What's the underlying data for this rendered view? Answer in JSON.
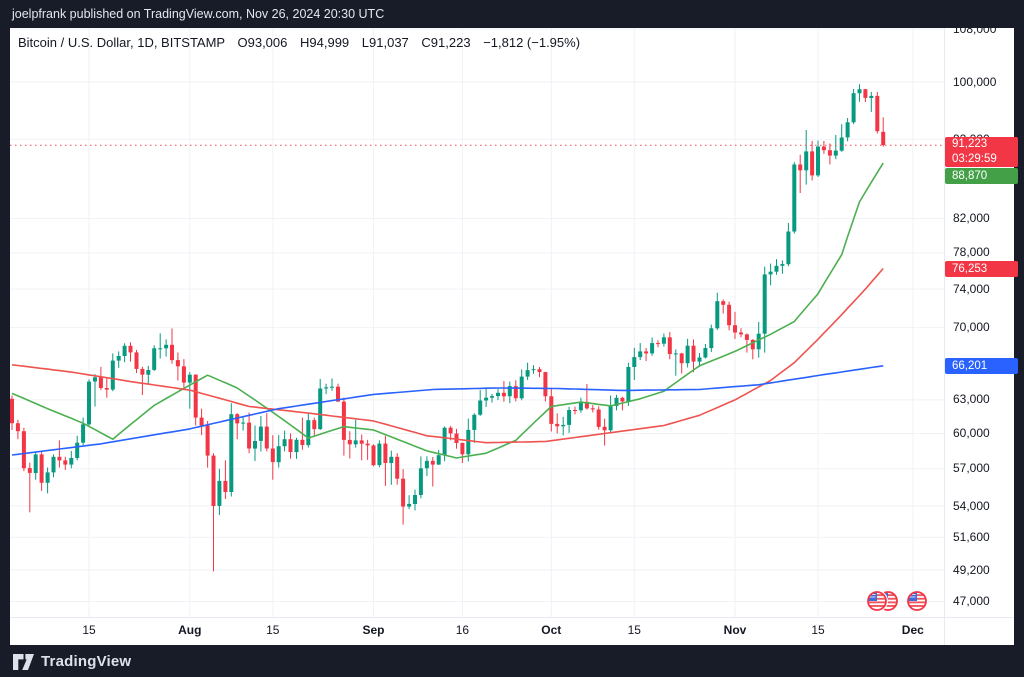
{
  "header": {
    "publish_text": "joelpfrank published on TradingView.com, Nov 26, 2024 20:30 UTC"
  },
  "title": {
    "instrument": "Bitcoin / U.S. Dollar, 1D, BITSTAMP",
    "o_label": "O",
    "o_value": "93,006",
    "h_label": "H",
    "h_value": "94,999",
    "l_label": "L",
    "l_value": "91,037",
    "c_label": "C",
    "c_value": "91,223",
    "change": "−1,812 (−1.95%)"
  },
  "footer": {
    "brand": "TradingView"
  },
  "price_axis": {
    "ticks": [
      {
        "label": "108,000",
        "value": 108000
      },
      {
        "label": "100,000",
        "value": 100000
      },
      {
        "label": "92,000",
        "value": 92000
      },
      {
        "label": "82,000",
        "value": 82000
      },
      {
        "label": "78,000",
        "value": 78000
      },
      {
        "label": "74,000",
        "value": 74000
      },
      {
        "label": "70,000",
        "value": 70000
      },
      {
        "label": "63,000",
        "value": 63000
      },
      {
        "label": "60,000",
        "value": 60000
      },
      {
        "label": "57,000",
        "value": 57000
      },
      {
        "label": "54,000",
        "value": 54000
      },
      {
        "label": "51,600",
        "value": 51600
      },
      {
        "label": "49,200",
        "value": 49200
      },
      {
        "label": "47,000",
        "value": 47000
      }
    ],
    "badges": [
      {
        "name": "last-price-badge",
        "lines": [
          "91,223",
          "03:29:59"
        ],
        "value": 91223,
        "color": "#f23645"
      },
      {
        "name": "ma-fast-badge",
        "lines": [
          "88,870"
        ],
        "value": 88870,
        "color": "#43a047"
      },
      {
        "name": "ma-mid-badge",
        "lines": [
          "76,253"
        ],
        "value": 76253,
        "color": "#f23645"
      },
      {
        "name": "ma-slow-badge",
        "lines": [
          "66,201"
        ],
        "value": 66201,
        "color": "#2962ff"
      }
    ]
  },
  "time_axis": {
    "ticks": [
      {
        "label": "15",
        "index": 13,
        "bold": false
      },
      {
        "label": "Aug",
        "index": 30,
        "bold": true
      },
      {
        "label": "15",
        "index": 44,
        "bold": false
      },
      {
        "label": "Sep",
        "index": 61,
        "bold": true
      },
      {
        "label": "16",
        "index": 76,
        "bold": false
      },
      {
        "label": "Oct",
        "index": 91,
        "bold": true
      },
      {
        "label": "15",
        "index": 105,
        "bold": false
      },
      {
        "label": "Nov",
        "index": 122,
        "bold": true
      },
      {
        "label": "15",
        "index": 136,
        "bold": false
      },
      {
        "label": "Dec",
        "index": 152,
        "bold": true
      }
    ]
  },
  "chart_data": {
    "type": "candlestick",
    "symbol": "Bitcoin / U.S. Dollar",
    "exchange": "BITSTAMP",
    "timeframe": "1D",
    "scale": "logarithmic",
    "start_date": "2024-07-02",
    "end_date": "2024-11-26",
    "note": "daily OHLC candles, one per calendar day, values in USD (approx. read from chart)",
    "last_price": 91223,
    "up_color": "#089981",
    "down_color": "#f23645",
    "candles": [
      [
        63100,
        63400,
        60300,
        60900
      ],
      [
        60900,
        61200,
        59500,
        60200
      ],
      [
        60200,
        60500,
        56800,
        57050
      ],
      [
        57050,
        57500,
        53500,
        56650
      ],
      [
        56650,
        58450,
        56100,
        58200
      ],
      [
        58200,
        58400,
        55200,
        55850
      ],
      [
        55850,
        57100,
        55000,
        56700
      ],
      [
        56700,
        58200,
        56300,
        58000
      ],
      [
        58000,
        59400,
        57100,
        57700
      ],
      [
        57700,
        58000,
        56900,
        57350
      ],
      [
        57350,
        58500,
        57050,
        57900
      ],
      [
        57900,
        59800,
        57700,
        59200
      ],
      [
        59200,
        61400,
        59000,
        60800
      ],
      [
        60800,
        64900,
        60600,
        64700
      ],
      [
        64700,
        65400,
        62400,
        65100
      ],
      [
        65100,
        66100,
        63900,
        64100
      ],
      [
        64100,
        65000,
        63200,
        63950
      ],
      [
        63950,
        67400,
        63800,
        66700
      ],
      [
        66700,
        67600,
        66000,
        67150
      ],
      [
        67150,
        68400,
        66550,
        68150
      ],
      [
        68150,
        68500,
        66600,
        67500
      ],
      [
        67500,
        67750,
        65500,
        65900
      ],
      [
        65900,
        66100,
        63450,
        65350
      ],
      [
        65350,
        66200,
        64500,
        65800
      ],
      [
        65800,
        68200,
        65700,
        67900
      ],
      [
        67900,
        69400,
        66900,
        67900
      ],
      [
        67900,
        68800,
        67100,
        68250
      ],
      [
        68250,
        69900,
        66400,
        66750
      ],
      [
        66750,
        67500,
        64800,
        66150
      ],
      [
        66150,
        66850,
        63900,
        64600
      ],
      [
        64600,
        65600,
        62200,
        65350
      ],
      [
        65350,
        65400,
        60700,
        61400
      ],
      [
        61400,
        62200,
        59850,
        60700
      ],
      [
        60700,
        61100,
        57100,
        58100
      ],
      [
        58100,
        58300,
        49100,
        54000
      ],
      [
        54000,
        57000,
        53300,
        56000
      ],
      [
        56000,
        57700,
        54550,
        55100
      ],
      [
        55100,
        62700,
        54750,
        61700
      ],
      [
        61700,
        61800,
        59500,
        60880
      ],
      [
        60880,
        61450,
        60250,
        60950
      ],
      [
        60950,
        61850,
        58300,
        58700
      ],
      [
        58700,
        60700,
        57650,
        59350
      ],
      [
        59350,
        61550,
        58450,
        60600
      ],
      [
        60600,
        61800,
        58450,
        58700
      ],
      [
        58700,
        59850,
        56100,
        57550
      ],
      [
        57550,
        59850,
        57100,
        58900
      ],
      [
        58900,
        60250,
        58450,
        59500
      ],
      [
        59500,
        60000,
        57850,
        58400
      ],
      [
        58400,
        59620,
        57830,
        59450
      ],
      [
        59450,
        61400,
        58600,
        59000
      ],
      [
        59000,
        61830,
        58780,
        61170
      ],
      [
        61170,
        61400,
        59750,
        60380
      ],
      [
        60380,
        64950,
        60300,
        64050
      ],
      [
        64050,
        64500,
        63530,
        64160
      ],
      [
        64160,
        65000,
        63830,
        64220
      ],
      [
        64220,
        64500,
        62830,
        62840
      ],
      [
        62840,
        63210,
        58100,
        59440
      ],
      [
        59440,
        60200,
        57860,
        59060
      ],
      [
        59060,
        61200,
        58780,
        59400
      ],
      [
        59400,
        59900,
        57700,
        59120
      ],
      [
        59120,
        59450,
        57740,
        58970
      ],
      [
        58970,
        59060,
        57210,
        57300
      ],
      [
        57300,
        59400,
        57120,
        59120
      ],
      [
        59120,
        59800,
        55600,
        57480
      ],
      [
        57480,
        58520,
        55680,
        58000
      ],
      [
        58000,
        58300,
        55700,
        56180
      ],
      [
        56180,
        56960,
        52550,
        53950
      ],
      [
        53950,
        54850,
        53750,
        54160
      ],
      [
        54160,
        55300,
        53650,
        54870
      ],
      [
        54870,
        58030,
        54600,
        57040
      ],
      [
        57040,
        58040,
        56390,
        57650
      ],
      [
        57650,
        57980,
        55550,
        57340
      ],
      [
        57340,
        58580,
        57320,
        58130
      ],
      [
        58130,
        60620,
        57630,
        60500
      ],
      [
        60500,
        60660,
        59400,
        60000
      ],
      [
        60000,
        60400,
        58690,
        59180
      ],
      [
        59180,
        59200,
        57490,
        58210
      ],
      [
        58210,
        61320,
        57610,
        60310
      ],
      [
        60310,
        61790,
        59180,
        61650
      ],
      [
        61650,
        63900,
        61550,
        62940
      ],
      [
        62940,
        64130,
        62350,
        63200
      ],
      [
        63200,
        63560,
        62750,
        63350
      ],
      [
        63350,
        64000,
        62980,
        63650
      ],
      [
        63650,
        64750,
        62820,
        63330
      ],
      [
        63330,
        64700,
        62700,
        64270
      ],
      [
        64270,
        64820,
        62860,
        63150
      ],
      [
        63150,
        65850,
        62960,
        65170
      ],
      [
        65170,
        66500,
        64850,
        65790
      ],
      [
        65790,
        66260,
        65440,
        65870
      ],
      [
        65870,
        66080,
        65110,
        65600
      ],
      [
        65600,
        65620,
        62860,
        63330
      ],
      [
        63330,
        64130,
        60170,
        60840
      ],
      [
        60840,
        61780,
        60000,
        60630
      ],
      [
        60630,
        61470,
        59830,
        60750
      ],
      [
        60750,
        62370,
        60050,
        62080
      ],
      [
        62080,
        62380,
        61690,
        62060
      ],
      [
        62060,
        63200,
        61840,
        62820
      ],
      [
        62820,
        64480,
        62120,
        62230
      ],
      [
        62230,
        62520,
        61860,
        62130
      ],
      [
        62130,
        62410,
        60330,
        60580
      ],
      [
        60580,
        61300,
        58950,
        60270
      ],
      [
        60270,
        63400,
        60050,
        62440
      ],
      [
        62440,
        63460,
        62050,
        63190
      ],
      [
        63190,
        63290,
        62050,
        62850
      ],
      [
        62850,
        66500,
        62450,
        66080
      ],
      [
        66080,
        67950,
        64840,
        67040
      ],
      [
        67040,
        68420,
        66750,
        67600
      ],
      [
        67600,
        67940,
        66660,
        67400
      ],
      [
        67400,
        68980,
        67170,
        68420
      ],
      [
        68420,
        68700,
        68010,
        68360
      ],
      [
        68360,
        69380,
        68070,
        69000
      ],
      [
        69000,
        69520,
        66830,
        67350
      ],
      [
        67350,
        67800,
        65260,
        67400
      ],
      [
        67400,
        67460,
        65460,
        66450
      ],
      [
        66450,
        68850,
        66050,
        68160
      ],
      [
        68160,
        68780,
        65590,
        66600
      ],
      [
        66600,
        67440,
        66070,
        67000
      ],
      [
        67000,
        68330,
        66900,
        67930
      ],
      [
        67930,
        70280,
        67540,
        69910
      ],
      [
        69910,
        73620,
        69750,
        72720
      ],
      [
        72720,
        72910,
        71430,
        72340
      ],
      [
        72340,
        72660,
        69690,
        70220
      ],
      [
        70220,
        71600,
        68820,
        69480
      ],
      [
        69480,
        69920,
        69010,
        69290
      ],
      [
        69290,
        69390,
        67480,
        68740
      ],
      [
        68740,
        68820,
        66830,
        67810
      ],
      [
        67810,
        70560,
        66990,
        69360
      ],
      [
        69360,
        76460,
        67480,
        75600
      ],
      [
        75600,
        76800,
        74420,
        75900
      ],
      [
        75900,
        77290,
        75570,
        76550
      ],
      [
        76550,
        77170,
        75670,
        76740
      ],
      [
        76740,
        81470,
        76510,
        80470
      ],
      [
        80470,
        89000,
        80220,
        88700
      ],
      [
        88700,
        89950,
        85090,
        87950
      ],
      [
        87950,
        93250,
        86140,
        90400
      ],
      [
        90400,
        91790,
        86670,
        87300
      ],
      [
        87300,
        91850,
        87110,
        91050
      ],
      [
        91050,
        91780,
        90080,
        90560
      ],
      [
        90560,
        91450,
        88720,
        89850
      ],
      [
        89850,
        92590,
        89380,
        90500
      ],
      [
        90500,
        94050,
        90350,
        92250
      ],
      [
        92250,
        94900,
        91740,
        94300
      ],
      [
        94300,
        98990,
        94040,
        98380
      ],
      [
        98380,
        99660,
        97170,
        98950
      ],
      [
        98950,
        98990,
        97120,
        97700
      ],
      [
        97700,
        98570,
        95750,
        98000
      ],
      [
        98000,
        98550,
        92780,
        93100
      ],
      [
        93006,
        94999,
        91037,
        91223
      ]
    ],
    "moving_averages": [
      {
        "name": "ma-fast",
        "color": "#4caf50",
        "last_value": 88870,
        "points": [
          [
            0,
            63600
          ],
          [
            6,
            62200
          ],
          [
            12,
            60900
          ],
          [
            17,
            59500
          ],
          [
            24,
            62500
          ],
          [
            33,
            65300
          ],
          [
            38,
            64100
          ],
          [
            45,
            61500
          ],
          [
            50,
            59600
          ],
          [
            56,
            60600
          ],
          [
            61,
            60300
          ],
          [
            66,
            59300
          ],
          [
            70,
            58500
          ],
          [
            75,
            57900
          ],
          [
            80,
            58300
          ],
          [
            85,
            59400
          ],
          [
            91,
            62400
          ],
          [
            96,
            62800
          ],
          [
            101,
            62450
          ],
          [
            106,
            63100
          ],
          [
            110,
            63800
          ],
          [
            116,
            66200
          ],
          [
            122,
            67600
          ],
          [
            128,
            69300
          ],
          [
            132,
            70600
          ],
          [
            136,
            73500
          ],
          [
            140,
            77800
          ],
          [
            143,
            84000
          ],
          [
            147,
            88870
          ]
        ]
      },
      {
        "name": "ma-mid",
        "color": "#ef5350",
        "last_value": 76253,
        "points": [
          [
            0,
            66300
          ],
          [
            10,
            65600
          ],
          [
            20,
            64700
          ],
          [
            30,
            63900
          ],
          [
            40,
            62400
          ],
          [
            50,
            61800
          ],
          [
            61,
            61100
          ],
          [
            70,
            59800
          ],
          [
            80,
            59200
          ],
          [
            90,
            59300
          ],
          [
            100,
            60000
          ],
          [
            110,
            60700
          ],
          [
            116,
            61600
          ],
          [
            122,
            63000
          ],
          [
            128,
            64800
          ],
          [
            132,
            66500
          ],
          [
            136,
            68800
          ],
          [
            140,
            71300
          ],
          [
            144,
            74000
          ],
          [
            147,
            76253
          ]
        ]
      },
      {
        "name": "ma-slow",
        "color": "#2962ff",
        "last_value": 66201,
        "points": [
          [
            0,
            58150
          ],
          [
            15,
            59100
          ],
          [
            30,
            60400
          ],
          [
            45,
            62200
          ],
          [
            61,
            63500
          ],
          [
            71,
            63960
          ],
          [
            82,
            64100
          ],
          [
            92,
            64050
          ],
          [
            103,
            63870
          ],
          [
            116,
            63960
          ],
          [
            126,
            64400
          ],
          [
            136,
            65270
          ],
          [
            147,
            66201
          ]
        ]
      }
    ]
  },
  "colors": {
    "up": "#089981",
    "down": "#f23645",
    "badge_green": "#43a047",
    "badge_blue": "#2962ff",
    "badge_red": "#f23645",
    "frame": "#171c28",
    "grid": "#f0f2f7"
  }
}
